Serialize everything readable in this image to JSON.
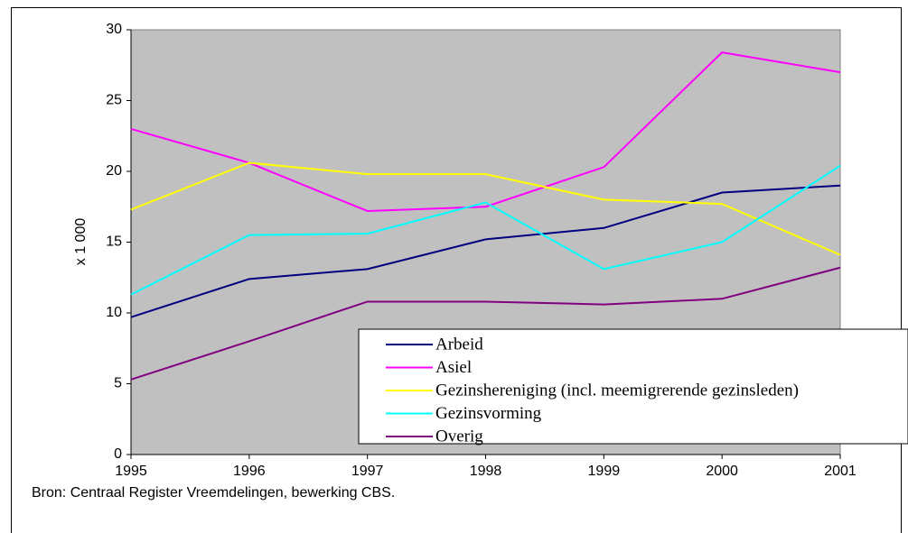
{
  "chart_data": {
    "type": "line",
    "y_label": "x 1 000",
    "source": "Bron: Centraal Register Vreemdelingen, bewerking CBS.",
    "x": [
      1995,
      1996,
      1997,
      1998,
      1999,
      2000,
      2001
    ],
    "xlim": [
      1995,
      2001
    ],
    "xticks": [
      1995,
      1996,
      1997,
      1998,
      1999,
      2000,
      2001
    ],
    "ylim": [
      0,
      30
    ],
    "yticks": [
      0,
      5,
      10,
      15,
      20,
      25,
      30
    ],
    "series": [
      {
        "name": "Arbeid",
        "color": "#000080",
        "values": [
          9.7,
          12.4,
          13.1,
          15.2,
          16.0,
          18.5,
          19.0
        ]
      },
      {
        "name": "Asiel",
        "color": "#ff00ff",
        "values": [
          23.0,
          20.6,
          17.2,
          17.5,
          20.3,
          28.4,
          27.0
        ]
      },
      {
        "name": "Gezinshereniging (incl. meemigrerende gezinsleden)",
        "color": "#ffff00",
        "values": [
          17.3,
          20.6,
          19.8,
          19.8,
          18.0,
          17.7,
          14.1
        ]
      },
      {
        "name": "Gezinsvorming",
        "color": "#00ffff",
        "values": [
          11.3,
          15.5,
          15.6,
          17.8,
          13.1,
          15.0,
          20.4
        ]
      },
      {
        "name": "Overig",
        "color": "#800080",
        "values": [
          5.3,
          8.0,
          10.8,
          10.8,
          10.6,
          11.0,
          13.2
        ]
      }
    ]
  }
}
